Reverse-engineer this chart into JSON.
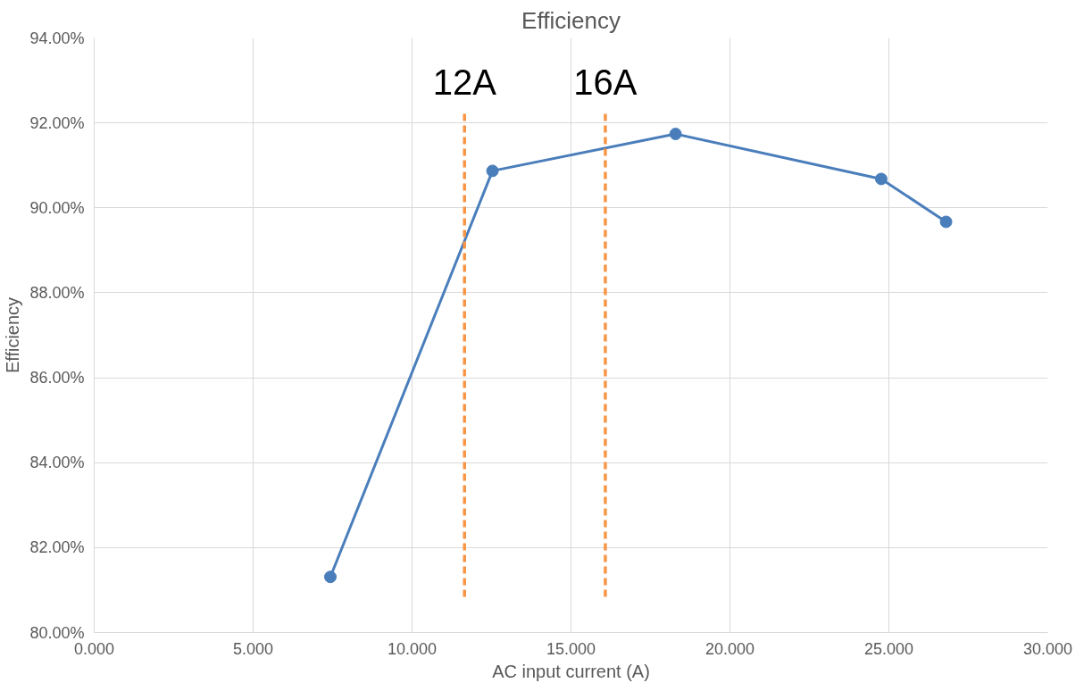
{
  "chart_data": {
    "type": "line",
    "title": "Efficiency",
    "xlabel": "AC input current (A)",
    "ylabel": "Efficiency",
    "x": [
      7.43,
      12.53,
      18.29,
      24.76,
      26.8
    ],
    "series": [
      {
        "color": "#4a7ebb",
        "values": [
          81.31,
          90.87,
          91.74,
          90.68,
          89.67
        ]
      }
    ],
    "marker": "circle",
    "line_style": "solid",
    "grid": true,
    "xlim": [
      0,
      30
    ],
    "ylim": [
      80,
      94
    ],
    "xticks": [
      {
        "value": 0,
        "label": "0.000"
      },
      {
        "value": 5,
        "label": "5.000"
      },
      {
        "value": 10,
        "label": "10.000"
      },
      {
        "value": 15,
        "label": "15.000"
      },
      {
        "value": 20,
        "label": "20.000"
      },
      {
        "value": 25,
        "label": "25.000"
      },
      {
        "value": 30,
        "label": "30.000"
      }
    ],
    "yticks": [
      {
        "value": 80,
        "label": "80.00%"
      },
      {
        "value": 82,
        "label": "82.00%"
      },
      {
        "value": 84,
        "label": "84.00%"
      },
      {
        "value": 86,
        "label": "86.00%"
      },
      {
        "value": 88,
        "label": "88.00%"
      },
      {
        "value": 90,
        "label": "90.00%"
      },
      {
        "value": 92,
        "label": "92.00%"
      },
      {
        "value": 94,
        "label": "94.00%"
      }
    ],
    "ref_lines": [
      {
        "axis": "x",
        "value": 11.65,
        "label": "12A",
        "color": "#f79646",
        "line_style": "dashed"
      },
      {
        "axis": "x",
        "value": 16.08,
        "label": "16A",
        "color": "#f79646",
        "line_style": "dashed"
      }
    ]
  }
}
